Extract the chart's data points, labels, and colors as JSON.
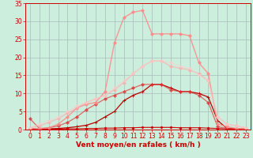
{
  "bg_color": "#cceedd",
  "grid_color": "#aabbbb",
  "xlabel": "Vent moyen/en rafales ( km/h )",
  "xlabel_color": "#cc0000",
  "xlabel_fontsize": 6.5,
  "tick_color": "#cc0000",
  "tick_fontsize": 5.5,
  "xlim": [
    -0.5,
    23.5
  ],
  "ylim": [
    0,
    35
  ],
  "yticks": [
    0,
    5,
    10,
    15,
    20,
    25,
    30,
    35
  ],
  "xticks": [
    0,
    1,
    2,
    3,
    4,
    5,
    6,
    7,
    8,
    9,
    10,
    11,
    12,
    13,
    14,
    15,
    16,
    17,
    18,
    19,
    20,
    21,
    22,
    23
  ],
  "lines": [
    {
      "x": [
        0,
        1,
        2,
        3,
        4,
        5,
        6,
        7,
        8,
        9,
        10,
        11,
        12,
        13,
        14,
        15,
        16,
        17,
        18,
        19,
        20,
        21,
        22,
        23
      ],
      "y": [
        0.2,
        0.1,
        0.1,
        0.1,
        0.2,
        0.2,
        0.3,
        0.3,
        0.4,
        0.4,
        0.5,
        0.5,
        0.6,
        0.6,
        0.6,
        0.6,
        0.5,
        0.5,
        0.5,
        0.4,
        0.3,
        0.2,
        0.2,
        0.1
      ],
      "color": "#cc0000",
      "alpha": 1.0,
      "lw": 0.8,
      "marker": "D",
      "ms": 1.5
    },
    {
      "x": [
        0,
        1,
        2,
        3,
        4,
        5,
        6,
        7,
        8,
        9,
        10,
        11,
        12,
        13,
        14,
        15,
        16,
        17,
        18,
        19,
        20,
        21,
        22,
        23
      ],
      "y": [
        0.2,
        0.1,
        0.2,
        0.3,
        0.5,
        0.8,
        1.2,
        2.0,
        3.5,
        5.0,
        8.0,
        9.5,
        10.5,
        12.5,
        12.5,
        11.5,
        10.5,
        10.5,
        10.0,
        9.0,
        2.5,
        0.3,
        0.2,
        0.1
      ],
      "color": "#bb0000",
      "alpha": 1.0,
      "lw": 0.9,
      "marker": "+",
      "ms": 3.5
    },
    {
      "x": [
        0,
        1,
        2,
        3,
        4,
        5,
        6,
        7,
        8,
        9,
        10,
        11,
        12,
        13,
        14,
        15,
        16,
        17,
        18,
        19,
        20,
        21,
        22,
        23
      ],
      "y": [
        3.0,
        0.3,
        0.5,
        1.0,
        2.0,
        3.5,
        5.5,
        7.0,
        8.5,
        9.5,
        10.5,
        11.5,
        12.5,
        12.5,
        12.5,
        11.0,
        10.5,
        10.5,
        9.5,
        7.5,
        0.8,
        0.3,
        0.2,
        0.1
      ],
      "color": "#dd3333",
      "alpha": 0.7,
      "lw": 0.9,
      "marker": "D",
      "ms": 2.0
    },
    {
      "x": [
        0,
        1,
        2,
        3,
        4,
        5,
        6,
        7,
        8,
        9,
        10,
        11,
        12,
        13,
        14,
        15,
        16,
        17,
        18,
        19,
        20,
        21,
        22,
        23
      ],
      "y": [
        0.3,
        0.2,
        0.5,
        1.5,
        3.5,
        6.0,
        7.0,
        7.5,
        10.5,
        24.0,
        31.0,
        32.5,
        33.0,
        26.5,
        26.5,
        26.5,
        26.5,
        26.0,
        18.5,
        15.5,
        1.5,
        0.8,
        0.3,
        0.2
      ],
      "color": "#ff8888",
      "alpha": 0.85,
      "lw": 1.0,
      "marker": "D",
      "ms": 2.0
    },
    {
      "x": [
        0,
        1,
        2,
        3,
        4,
        5,
        6,
        7,
        8,
        9,
        10,
        11,
        12,
        13,
        14,
        15,
        16,
        17,
        18,
        19,
        20,
        21,
        22,
        23
      ],
      "y": [
        0.5,
        1.0,
        2.0,
        3.0,
        4.5,
        6.0,
        7.5,
        8.5,
        9.5,
        11.0,
        13.0,
        15.5,
        17.5,
        19.0,
        19.0,
        17.5,
        17.0,
        16.5,
        15.5,
        13.5,
        3.5,
        1.5,
        1.0,
        0.5
      ],
      "color": "#ffaaaa",
      "alpha": 0.65,
      "lw": 1.0,
      "marker": "D",
      "ms": 2.0
    },
    {
      "x": [
        0,
        1,
        2,
        3,
        4,
        5,
        6,
        7,
        8,
        9,
        10,
        11,
        12,
        13,
        14,
        15,
        16,
        17,
        18,
        19,
        20,
        21,
        22,
        23
      ],
      "y": [
        0.5,
        1.5,
        2.5,
        3.5,
        5.0,
        6.5,
        7.5,
        8.5,
        9.5,
        11.5,
        13.5,
        15.5,
        17.5,
        19.0,
        19.0,
        18.5,
        17.5,
        17.0,
        15.0,
        13.5,
        3.5,
        1.5,
        1.0,
        0.5
      ],
      "color": "#ffcccc",
      "alpha": 0.5,
      "lw": 1.0,
      "marker": "D",
      "ms": 1.8
    }
  ]
}
